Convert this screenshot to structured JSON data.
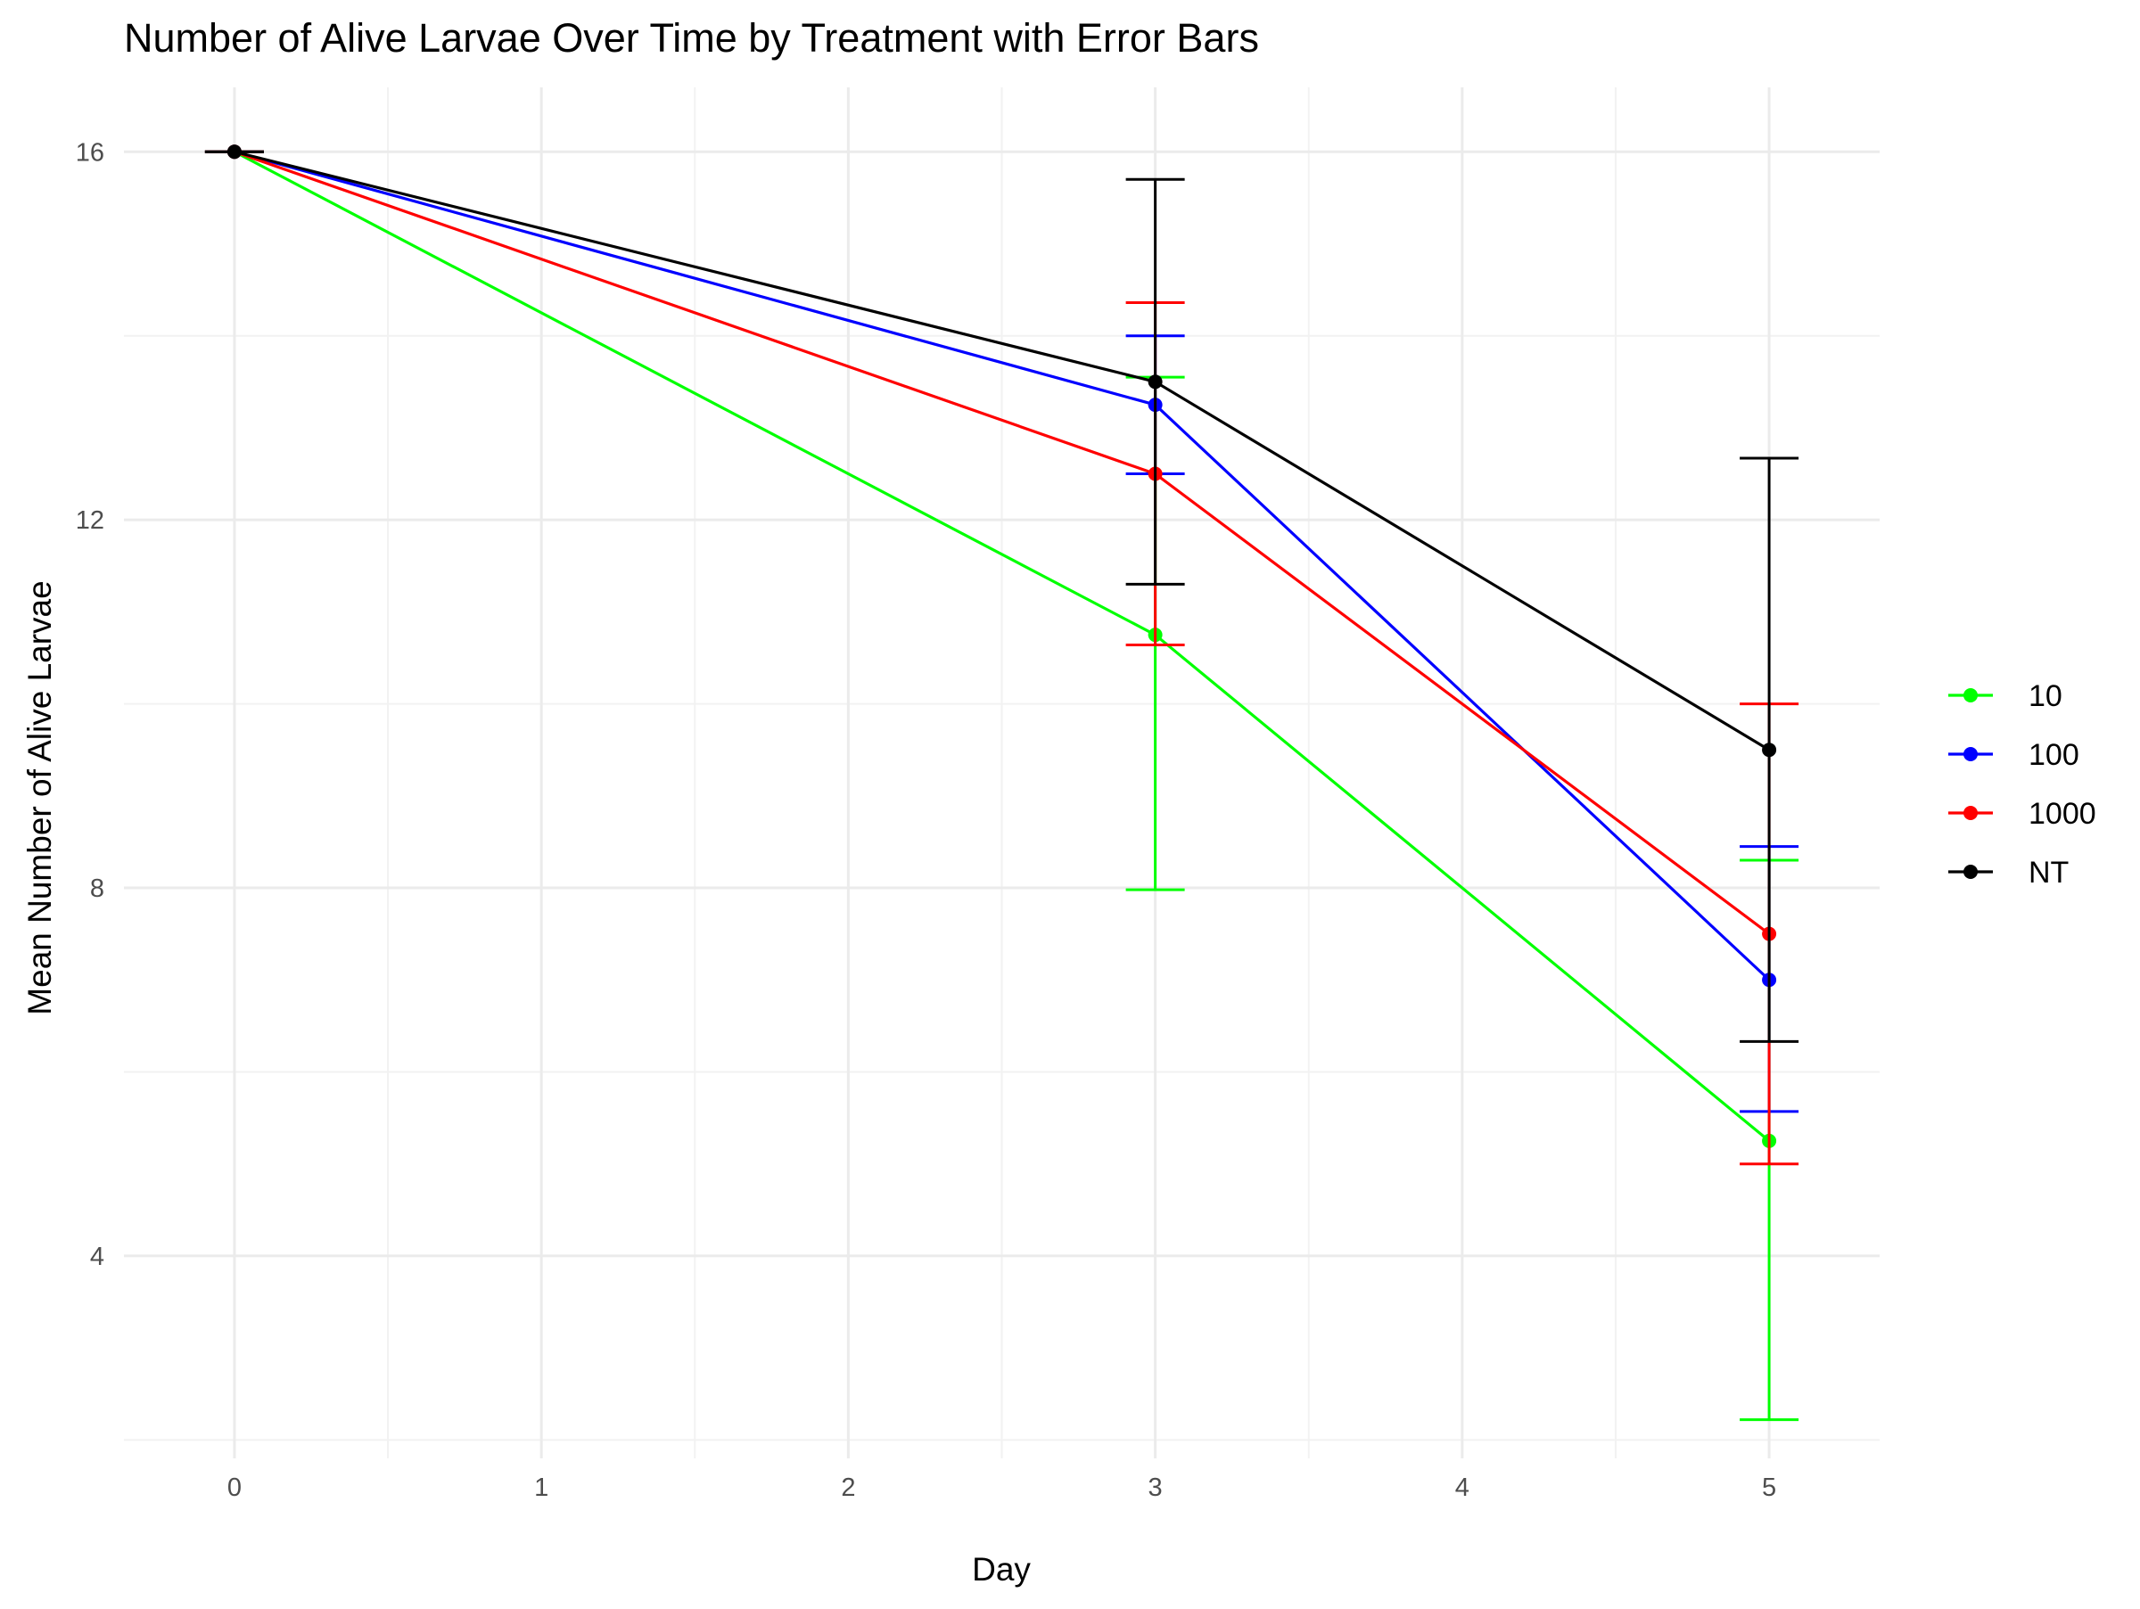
{
  "chart_data": {
    "type": "line",
    "title": "Number of Alive Larvae Over Time by Treatment with Error Bars",
    "xlabel": "Day",
    "ylabel": "Mean Number of Alive Larvae",
    "x": [
      0,
      3,
      5
    ],
    "xticks": [
      0,
      1,
      2,
      3,
      4,
      5
    ],
    "yticks": [
      4,
      8,
      12,
      16
    ],
    "xlim": [
      -0.36,
      5.36
    ],
    "ylim": [
      1.8,
      16.7
    ],
    "grid": true,
    "legend_position": "right",
    "series": [
      {
        "name": "10",
        "color": "#00ff00",
        "values": [
          16,
          10.75,
          5.25
        ],
        "err_low": [
          16,
          7.98,
          2.22
        ],
        "err_high": [
          16,
          13.55,
          8.3
        ]
      },
      {
        "name": "100",
        "color": "#0000ff",
        "values": [
          16,
          13.25,
          7.0
        ],
        "err_low": [
          16,
          12.5,
          5.57
        ],
        "err_high": [
          16,
          14.0,
          8.45
        ]
      },
      {
        "name": "1000",
        "color": "#ff0000",
        "values": [
          16,
          12.5,
          7.5
        ],
        "err_low": [
          16,
          10.64,
          5.0
        ],
        "err_high": [
          16,
          14.36,
          10.0
        ]
      },
      {
        "name": "NT",
        "color": "#000000",
        "values": [
          16,
          13.5,
          9.5
        ],
        "err_low": [
          16,
          11.3,
          6.33
        ],
        "err_high": [
          16,
          15.7,
          12.67
        ]
      }
    ]
  }
}
